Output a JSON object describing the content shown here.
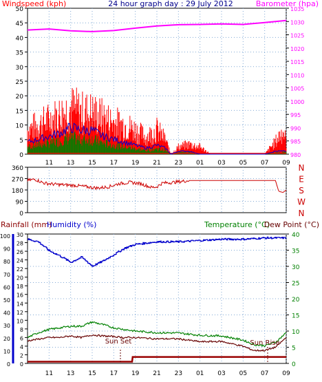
{
  "chart_data": [
    {
      "type": "line",
      "title": "24 hour graph day : 29 July 2012",
      "left_axis_label": "Windspeed (kph)",
      "right_axis_label": "Barometer (hpa)",
      "x_tick_labels": [
        "11",
        "13",
        "15",
        "17",
        "19",
        "21",
        "23",
        "01",
        "03",
        "05",
        "07",
        "09"
      ],
      "left_ticks": [
        "0",
        "5",
        "10",
        "15",
        "20",
        "25",
        "30",
        "35",
        "40",
        "45",
        "50"
      ],
      "right_ticks": [
        "980",
        "985",
        "990",
        "995",
        "1000",
        "1005",
        "1010",
        "1015",
        "1020",
        "1025",
        "1030",
        "1035"
      ],
      "right_ylim": [
        980,
        1035
      ],
      "left_ylim": [
        0,
        50
      ],
      "grid": true,
      "colors": {
        "gust": "#ff0000",
        "average": "#0000cc",
        "average_fill": "#008000",
        "barometer": "#ff00ff"
      },
      "barometer_hpa": [
        [
          9,
          1026.8
        ],
        [
          11,
          1027.2
        ],
        [
          13,
          1026.5
        ],
        [
          15,
          1026.2
        ],
        [
          17,
          1026.6
        ],
        [
          19,
          1027.5
        ],
        [
          21,
          1028.3
        ],
        [
          23,
          1028.8
        ],
        [
          25,
          1028.9
        ],
        [
          27,
          1029.1
        ],
        [
          29,
          1028.9
        ],
        [
          31,
          1029.6
        ],
        [
          33,
          1030.4
        ]
      ],
      "wind_gust_profile_kph": [
        [
          9,
          10
        ],
        [
          10,
          12
        ],
        [
          11,
          14
        ],
        [
          12,
          16
        ],
        [
          13,
          19
        ],
        [
          14,
          17
        ],
        [
          15,
          17
        ],
        [
          16,
          15
        ],
        [
          17,
          13
        ],
        [
          18,
          12
        ],
        [
          19,
          10
        ],
        [
          20,
          7
        ],
        [
          21,
          10
        ],
        [
          21.8,
          6
        ],
        [
          22.3,
          0
        ],
        [
          23,
          3
        ],
        [
          24,
          4
        ],
        [
          25,
          3
        ],
        [
          26,
          0
        ],
        [
          31,
          0
        ],
        [
          32,
          5
        ],
        [
          32.7,
          10
        ],
        [
          33,
          5
        ]
      ],
      "wind_avg_profile_kph": [
        [
          9,
          4
        ],
        [
          10,
          5
        ],
        [
          11,
          6
        ],
        [
          12,
          7
        ],
        [
          13,
          9
        ],
        [
          14,
          8
        ],
        [
          15,
          8
        ],
        [
          16,
          6
        ],
        [
          17,
          5
        ],
        [
          18,
          4
        ],
        [
          19,
          3
        ],
        [
          20,
          2
        ],
        [
          21,
          3
        ],
        [
          21.8,
          2
        ],
        [
          22.3,
          0
        ],
        [
          23,
          1
        ],
        [
          24,
          1
        ],
        [
          25,
          0
        ],
        [
          26,
          0
        ],
        [
          31,
          0
        ],
        [
          32,
          1
        ],
        [
          33,
          1
        ]
      ]
    },
    {
      "type": "scatter",
      "series": "wind direction",
      "left_ticks": [
        "0",
        "90",
        "180",
        "270",
        "360"
      ],
      "right_labels": [
        "N",
        "W",
        "S",
        "E",
        "N"
      ],
      "ylim": [
        0,
        360
      ],
      "direction_profile_deg": [
        [
          9,
          255
        ],
        [
          9.7,
          265
        ],
        [
          10.5,
          235
        ],
        [
          11.5,
          225
        ],
        [
          12.5,
          220
        ],
        [
          13.5,
          215
        ],
        [
          14.5,
          205
        ],
        [
          15.5,
          195
        ],
        [
          16.5,
          205
        ],
        [
          17.5,
          230
        ],
        [
          18.5,
          240
        ],
        [
          19.5,
          230
        ],
        [
          20.5,
          200
        ],
        [
          21,
          205
        ],
        [
          21.5,
          235
        ],
        [
          22.5,
          240
        ],
        [
          23,
          245
        ],
        [
          24,
          255
        ],
        [
          32,
          255
        ],
        [
          32.3,
          170
        ],
        [
          32.7,
          160
        ],
        [
          33,
          180
        ]
      ]
    },
    {
      "type": "line",
      "left_axis_labels": [
        "Rainfall (mm)",
        "Humidity (%)"
      ],
      "right_axis_labels": [
        "Temperature (°C)",
        "Dew Point (°C)"
      ],
      "rain_ticks": [
        "0",
        "2",
        "4",
        "6",
        "8",
        "10",
        "12",
        "14",
        "16",
        "18",
        "20",
        "22",
        "24",
        "26",
        "28",
        "30"
      ],
      "humidity_ticks": [
        "0",
        "10",
        "20",
        "30",
        "40",
        "50",
        "60",
        "70",
        "80",
        "90",
        "100"
      ],
      "temp_ticks": [
        "0",
        "5",
        "10",
        "15",
        "20",
        "25",
        "30",
        "35",
        "40"
      ],
      "temp_ylim": [
        0,
        40
      ],
      "annotations": [
        "Sun Set",
        "Sun Rise"
      ],
      "colors": {
        "humidity": "#0000cc",
        "temperature": "#008000",
        "dewpoint": "#660000",
        "rainfall": "#990000",
        "temp_axis": "#008000"
      },
      "humidity_pct": [
        [
          9,
          97
        ],
        [
          10,
          95
        ],
        [
          11,
          88
        ],
        [
          12,
          84
        ],
        [
          13,
          79
        ],
        [
          13.5,
          81
        ],
        [
          14,
          83
        ],
        [
          15,
          76
        ],
        [
          16,
          80
        ],
        [
          17,
          85
        ],
        [
          18,
          90
        ],
        [
          19,
          93
        ],
        [
          20,
          94
        ],
        [
          21,
          95
        ],
        [
          23,
          95
        ],
        [
          25,
          96
        ],
        [
          27,
          97
        ],
        [
          29,
          97
        ],
        [
          31,
          98
        ],
        [
          33,
          98
        ]
      ],
      "temperature_c": [
        [
          9,
          8
        ],
        [
          10,
          9.5
        ],
        [
          11,
          10.5
        ],
        [
          12,
          11
        ],
        [
          13,
          11.5
        ],
        [
          14,
          11.5
        ],
        [
          15,
          12.8
        ],
        [
          16,
          12
        ],
        [
          17,
          11
        ],
        [
          18,
          10.5
        ],
        [
          19,
          10
        ],
        [
          21,
          9.5
        ],
        [
          23,
          9.4
        ],
        [
          25,
          8.7
        ],
        [
          27,
          8.5
        ],
        [
          29,
          7.2
        ],
        [
          30,
          5.8
        ],
        [
          31,
          5.5
        ],
        [
          32,
          6.5
        ],
        [
          33,
          9.5
        ]
      ],
      "dewpoint_c": [
        [
          9,
          7
        ],
        [
          10,
          7.5
        ],
        [
          11,
          8
        ],
        [
          12,
          8
        ],
        [
          13,
          8.5
        ],
        [
          14,
          8
        ],
        [
          15,
          8.8
        ],
        [
          16,
          8.5
        ],
        [
          17,
          8.3
        ],
        [
          18,
          8
        ],
        [
          19,
          8
        ],
        [
          21,
          7.6
        ],
        [
          23,
          7.6
        ],
        [
          25,
          6.7
        ],
        [
          27,
          6.8
        ],
        [
          29,
          5.3
        ],
        [
          30,
          4
        ],
        [
          31,
          4
        ],
        [
          32,
          5
        ],
        [
          33,
          8
        ]
      ],
      "rainfall_mm": [
        [
          9,
          0.4
        ],
        [
          18.7,
          0.4
        ],
        [
          18.75,
          1.5
        ],
        [
          33,
          1.5
        ]
      ]
    }
  ]
}
